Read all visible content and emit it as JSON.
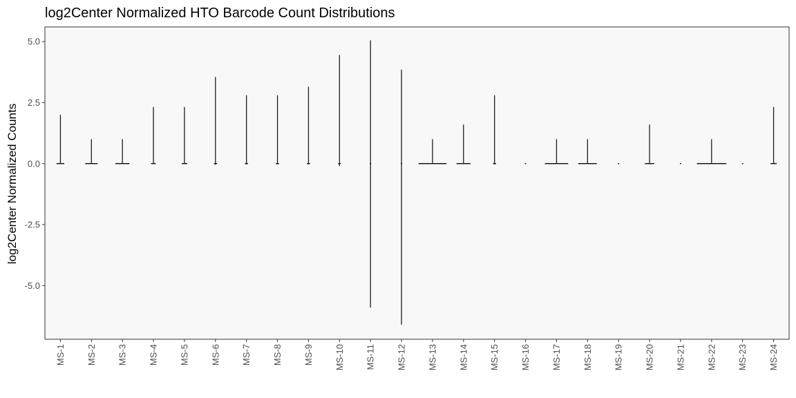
{
  "chart_data": {
    "type": "violin",
    "title": "log2Center Normalized HTO Barcode Count Distributions",
    "xlabel": "",
    "ylabel": "log2Center Normalized Counts",
    "ylim": [
      -7.2,
      5.6
    ],
    "yticks": [
      5.0,
      2.5,
      0.0,
      -2.5,
      -5.0
    ],
    "ytick_labels": [
      "5.0",
      "2.5",
      "0.0",
      "-2.5",
      "-5.0"
    ],
    "grid": false,
    "legend": "none",
    "categories": [
      "MS-1",
      "MS-2",
      "MS-3",
      "MS-4",
      "MS-5",
      "MS-6",
      "MS-7",
      "MS-8",
      "MS-9",
      "MS-10",
      "MS-11",
      "MS-12",
      "MS-13",
      "MS-14",
      "MS-15",
      "MS-16",
      "MS-17",
      "MS-18",
      "MS-19",
      "MS-20",
      "MS-21",
      "MS-22",
      "MS-23",
      "MS-24"
    ],
    "distributions": [
      {
        "name": "MS-1",
        "min": 0.0,
        "max": 2.0,
        "base_width": 0.25
      },
      {
        "name": "MS-2",
        "min": 0.0,
        "max": 1.0,
        "base_width": 0.4
      },
      {
        "name": "MS-3",
        "min": 0.0,
        "max": 1.0,
        "base_width": 0.45
      },
      {
        "name": "MS-4",
        "min": 0.0,
        "max": 2.32,
        "base_width": 0.15
      },
      {
        "name": "MS-5",
        "min": 0.0,
        "max": 2.32,
        "base_width": 0.18
      },
      {
        "name": "MS-6",
        "min": -0.05,
        "max": 3.55,
        "base_width": 0.1
      },
      {
        "name": "MS-7",
        "min": -0.03,
        "max": 2.8,
        "base_width": 0.1
      },
      {
        "name": "MS-8",
        "min": -0.03,
        "max": 2.8,
        "base_width": 0.1
      },
      {
        "name": "MS-9",
        "min": -0.03,
        "max": 3.15,
        "base_width": 0.1
      },
      {
        "name": "MS-10",
        "min": -0.1,
        "max": 4.45,
        "base_width": 0.08
      },
      {
        "name": "MS-11",
        "min": -5.9,
        "max": 5.05,
        "base_width": 0.0
      },
      {
        "name": "MS-12",
        "min": -6.6,
        "max": 3.85,
        "base_width": 0.0
      },
      {
        "name": "MS-13",
        "min": 0.0,
        "max": 1.0,
        "base_width": 0.9
      },
      {
        "name": "MS-14",
        "min": 0.0,
        "max": 1.6,
        "base_width": 0.45
      },
      {
        "name": "MS-15",
        "min": -0.03,
        "max": 2.8,
        "base_width": 0.1
      },
      {
        "name": "MS-16",
        "min": 0.0,
        "max": 0.0,
        "base_width": 0.04
      },
      {
        "name": "MS-17",
        "min": 0.0,
        "max": 1.0,
        "base_width": 0.75
      },
      {
        "name": "MS-18",
        "min": 0.0,
        "max": 1.0,
        "base_width": 0.6
      },
      {
        "name": "MS-19",
        "min": 0.0,
        "max": 0.0,
        "base_width": 0.04
      },
      {
        "name": "MS-20",
        "min": 0.0,
        "max": 1.6,
        "base_width": 0.3
      },
      {
        "name": "MS-21",
        "min": 0.0,
        "max": 0.0,
        "base_width": 0.04
      },
      {
        "name": "MS-22",
        "min": 0.0,
        "max": 1.0,
        "base_width": 0.95
      },
      {
        "name": "MS-23",
        "min": 0.0,
        "max": 0.0,
        "base_width": 0.04
      },
      {
        "name": "MS-24",
        "min": 0.0,
        "max": 2.32,
        "base_width": 0.2
      }
    ],
    "colors": {
      "panel_bg": "#f8f8f8",
      "panel_border": "#333333",
      "line": "#1a1a1a"
    }
  }
}
